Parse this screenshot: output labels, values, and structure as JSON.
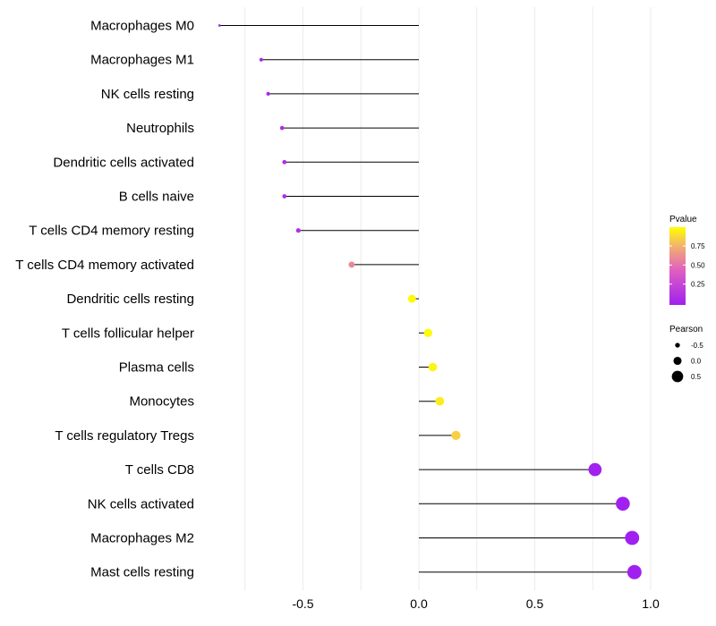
{
  "chart_data": {
    "type": "lollipop",
    "title": "",
    "xlabel": "",
    "ylabel": "",
    "xlim": [
      -0.9,
      1.0
    ],
    "x_ticks": [
      -0.5,
      0.0,
      0.5,
      1.0
    ],
    "x_tick_labels": [
      "-0.5",
      "0.0",
      "0.5",
      "1.0"
    ],
    "grid": true,
    "categories": [
      "Macrophages M0",
      "Macrophages M1",
      "NK cells resting",
      "Neutrophils",
      "Dendritic cells activated",
      "B cells naive",
      "T cells CD4 memory resting",
      "T cells CD4 memory activated",
      "Dendritic cells resting",
      "T cells follicular helper",
      "Plasma cells",
      "Monocytes",
      "T cells regulatory  Tregs ",
      "T cells CD8",
      "NK cells activated",
      "Macrophages M2",
      "Mast cells resting"
    ],
    "pearson": [
      -0.86,
      -0.68,
      -0.65,
      -0.59,
      -0.58,
      -0.58,
      -0.52,
      -0.29,
      -0.03,
      0.04,
      0.06,
      0.09,
      0.16,
      0.76,
      0.88,
      0.92,
      0.93
    ],
    "pvalue": [
      0.0,
      0.04,
      0.05,
      0.09,
      0.1,
      0.1,
      0.13,
      0.6,
      0.98,
      0.99,
      0.97,
      0.94,
      0.85,
      0.01,
      0.0,
      0.0,
      0.0
    ],
    "color_legend": {
      "title": "Pvalue",
      "ticks": [
        0.25,
        0.5,
        0.75
      ],
      "tick_labels": [
        "0.25",
        "0.50",
        "0.75"
      ],
      "low_color": "#a020f0",
      "high_color": "#ffff00"
    },
    "size_legend": {
      "title": "Pearson",
      "values": [
        -0.5,
        0.0,
        0.5
      ],
      "labels": [
        "-0.5",
        "0.0",
        "0.5"
      ]
    },
    "stem_color": "#000000",
    "grid_color": "#ebebeb"
  }
}
